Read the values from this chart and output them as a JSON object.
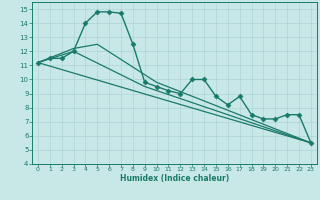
{
  "title": "",
  "xlabel": "Humidex (Indice chaleur)",
  "ylabel": "",
  "bg_color": "#c8e8e8",
  "line_color": "#1a7a6a",
  "grid_color": "#a8d0d0",
  "xlim": [
    -0.5,
    23.5
  ],
  "ylim": [
    4,
    15.5
  ],
  "yticks": [
    4,
    5,
    6,
    7,
    8,
    9,
    10,
    11,
    12,
    13,
    14,
    15
  ],
  "xticks": [
    0,
    1,
    2,
    3,
    4,
    5,
    6,
    7,
    8,
    9,
    10,
    11,
    12,
    13,
    14,
    15,
    16,
    17,
    18,
    19,
    20,
    21,
    22,
    23
  ],
  "series": [
    {
      "x": [
        0,
        1,
        2,
        3,
        4,
        5,
        6,
        7,
        8,
        9,
        10,
        11,
        12,
        13,
        14,
        15,
        16,
        17,
        18,
        19,
        20,
        21,
        22,
        23
      ],
      "y": [
        11.2,
        11.5,
        11.5,
        12.0,
        14.0,
        14.8,
        14.8,
        14.7,
        12.5,
        9.8,
        9.5,
        9.2,
        9.0,
        10.0,
        10.0,
        8.8,
        8.2,
        8.8,
        7.5,
        7.2,
        7.2,
        7.5,
        7.5,
        5.5
      ],
      "marker": "D",
      "markersize": 2.5,
      "linewidth": 1.0
    },
    {
      "x": [
        0,
        3,
        5,
        10,
        23
      ],
      "y": [
        11.2,
        12.2,
        12.5,
        9.8,
        5.5
      ],
      "marker": null,
      "linewidth": 0.9
    },
    {
      "x": [
        0,
        3,
        9,
        23
      ],
      "y": [
        11.2,
        12.0,
        9.5,
        5.5
      ],
      "marker": null,
      "linewidth": 0.9
    },
    {
      "x": [
        0,
        23
      ],
      "y": [
        11.2,
        5.5
      ],
      "marker": null,
      "linewidth": 0.9
    }
  ]
}
